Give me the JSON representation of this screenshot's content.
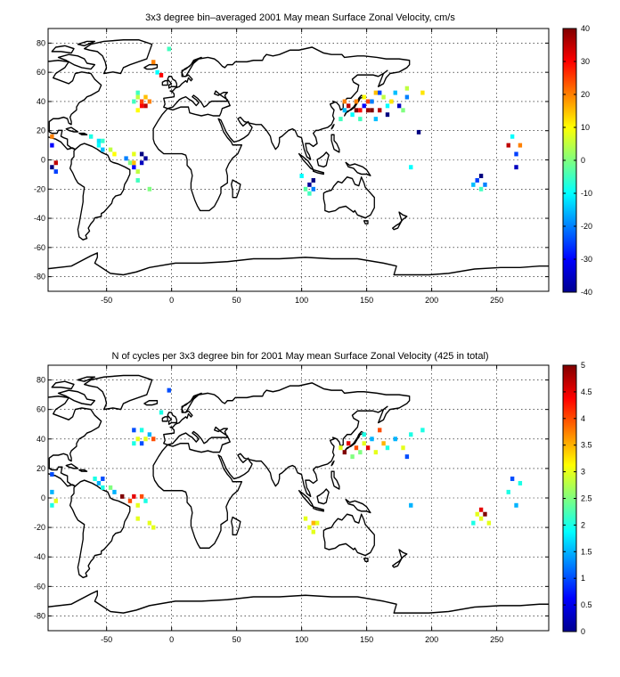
{
  "chart_data": [
    {
      "type": "heatmap",
      "title": "3x3 degree bin–averaged 2001 May mean Surface Zonal Velocity, cm/s",
      "xlim": [
        -95,
        290
      ],
      "ylim": [
        -90,
        90
      ],
      "xticks": [
        -50,
        0,
        50,
        100,
        150,
        200,
        250
      ],
      "yticks": [
        -80,
        -60,
        -40,
        -20,
        0,
        20,
        40,
        60,
        80
      ],
      "grid": true,
      "colorbar": {
        "clim": [
          -40,
          40
        ],
        "ticks": [
          -40,
          -30,
          -20,
          -10,
          0,
          10,
          20,
          30,
          40
        ],
        "colormap": "jet"
      },
      "cells": [
        [
          -92,
          16,
          20
        ],
        [
          -92,
          10,
          -30
        ],
        [
          -92,
          -5,
          -40
        ],
        [
          -89,
          -2,
          35
        ],
        [
          -89,
          -8,
          -25
        ],
        [
          -62,
          16,
          -8
        ],
        [
          -56,
          10,
          -10
        ],
        [
          -56,
          13,
          -12
        ],
        [
          -53,
          13,
          -6
        ],
        [
          -53,
          7,
          -15
        ],
        [
          -47,
          7,
          5
        ],
        [
          -44,
          4,
          10
        ],
        [
          -35,
          1,
          -20
        ],
        [
          -32,
          -2,
          0
        ],
        [
          -29,
          -5,
          -30
        ],
        [
          -29,
          -2,
          15
        ],
        [
          -29,
          4,
          8
        ],
        [
          -26,
          -8,
          5
        ],
        [
          -23,
          -2,
          -35
        ],
        [
          -23,
          4,
          -40
        ],
        [
          -20,
          1,
          -38
        ],
        [
          -26,
          -14,
          -5
        ],
        [
          -17,
          -20,
          0
        ],
        [
          -29,
          40,
          -5
        ],
        [
          -26,
          43,
          5
        ],
        [
          -26,
          34,
          10
        ],
        [
          -23,
          40,
          25
        ],
        [
          -23,
          37,
          30
        ],
        [
          -20,
          37,
          35
        ],
        [
          -20,
          43,
          15
        ],
        [
          -17,
          40,
          20
        ],
        [
          -26,
          46,
          -5
        ],
        [
          -11,
          60,
          -10
        ],
        [
          -8,
          58,
          30
        ],
        [
          -14,
          67,
          20
        ],
        [
          -2,
          76,
          -5
        ],
        [
          100,
          -11,
          -10
        ],
        [
          103,
          -20,
          -3
        ],
        [
          106,
          -17,
          -38
        ],
        [
          106,
          -23,
          -5
        ],
        [
          109,
          -14,
          -40
        ],
        [
          109,
          -20,
          -20
        ],
        [
          130,
          28,
          -5
        ],
        [
          133,
          34,
          -15
        ],
        [
          133,
          40,
          20
        ],
        [
          136,
          37,
          35
        ],
        [
          139,
          31,
          -10
        ],
        [
          142,
          34,
          40
        ],
        [
          142,
          40,
          20
        ],
        [
          145,
          34,
          30
        ],
        [
          145,
          28,
          -5
        ],
        [
          148,
          37,
          -30
        ],
        [
          148,
          43,
          10
        ],
        [
          151,
          34,
          38
        ],
        [
          151,
          40,
          25
        ],
        [
          154,
          34,
          40
        ],
        [
          154,
          40,
          -20
        ],
        [
          157,
          46,
          15
        ],
        [
          157,
          28,
          -15
        ],
        [
          160,
          34,
          36
        ],
        [
          160,
          46,
          -25
        ],
        [
          163,
          43,
          5
        ],
        [
          166,
          37,
          -10
        ],
        [
          166,
          31,
          -40
        ],
        [
          169,
          40,
          12
        ],
        [
          172,
          46,
          -15
        ],
        [
          175,
          37,
          -35
        ],
        [
          178,
          34,
          0
        ],
        [
          181,
          49,
          5
        ],
        [
          181,
          43,
          -20
        ],
        [
          190,
          19,
          -40
        ],
        [
          184,
          -5,
          -10
        ],
        [
          193,
          46,
          12
        ],
        [
          235,
          -14,
          -25
        ],
        [
          238,
          -11,
          -40
        ],
        [
          241,
          -17,
          -20
        ],
        [
          238,
          -20,
          -5
        ],
        [
          232,
          -17,
          -15
        ],
        [
          259,
          10,
          35
        ],
        [
          265,
          4,
          -25
        ],
        [
          265,
          -5,
          -35
        ],
        [
          262,
          16,
          -10
        ],
        [
          268,
          10,
          20
        ]
      ]
    },
    {
      "type": "heatmap",
      "title": "N of cycles per 3x3 degree bin for 2001 May mean Surface Zonal Velocity (425 in total)",
      "xlim": [
        -95,
        290
      ],
      "ylim": [
        -90,
        90
      ],
      "xticks": [
        -50,
        0,
        50,
        100,
        150,
        200,
        250
      ],
      "yticks": [
        -80,
        -60,
        -40,
        -20,
        0,
        20,
        40,
        60,
        80
      ],
      "grid": true,
      "colorbar": {
        "clim": [
          0,
          5
        ],
        "ticks": [
          0,
          0.5,
          1,
          1.5,
          2,
          2.5,
          3,
          3.5,
          4,
          4.5,
          5
        ],
        "colormap": "jet"
      },
      "cells": [
        [
          -92,
          16,
          1
        ],
        [
          -92,
          4,
          1.5
        ],
        [
          -92,
          -5,
          2
        ],
        [
          -89,
          -2,
          3
        ],
        [
          -59,
          13,
          2
        ],
        [
          -56,
          10,
          1.5
        ],
        [
          -53,
          13,
          1
        ],
        [
          -53,
          7,
          2
        ],
        [
          -47,
          7,
          2.5
        ],
        [
          -44,
          4,
          1.5
        ],
        [
          -38,
          1,
          5
        ],
        [
          -32,
          -2,
          4
        ],
        [
          -29,
          1,
          4.5
        ],
        [
          -26,
          -5,
          3
        ],
        [
          -23,
          1,
          4
        ],
        [
          -20,
          -2,
          2
        ],
        [
          -26,
          -14,
          3
        ],
        [
          -17,
          -17,
          3
        ],
        [
          -14,
          -20,
          3
        ],
        [
          -29,
          37,
          2
        ],
        [
          -26,
          40,
          3
        ],
        [
          -23,
          37,
          1
        ],
        [
          -20,
          40,
          3
        ],
        [
          -17,
          43,
          1.5
        ],
        [
          -23,
          46,
          2
        ],
        [
          -29,
          46,
          1
        ],
        [
          -14,
          40,
          4
        ],
        [
          -2,
          73,
          1
        ],
        [
          -8,
          58,
          2
        ],
        [
          103,
          -14,
          3
        ],
        [
          106,
          -20,
          3
        ],
        [
          109,
          -17,
          3.5
        ],
        [
          109,
          -23,
          3
        ],
        [
          112,
          -17,
          3
        ],
        [
          130,
          34,
          3
        ],
        [
          133,
          31,
          5
        ],
        [
          136,
          37,
          4.5
        ],
        [
          139,
          28,
          2.5
        ],
        [
          142,
          34,
          4
        ],
        [
          145,
          31,
          2.5
        ],
        [
          148,
          37,
          3
        ],
        [
          148,
          43,
          2
        ],
        [
          151,
          34,
          4.5
        ],
        [
          154,
          40,
          1.5
        ],
        [
          157,
          31,
          3
        ],
        [
          160,
          46,
          4
        ],
        [
          163,
          37,
          3.5
        ],
        [
          166,
          34,
          2
        ],
        [
          172,
          40,
          1.5
        ],
        [
          178,
          34,
          3
        ],
        [
          181,
          28,
          1
        ],
        [
          184,
          43,
          2
        ],
        [
          184,
          -5,
          1.5
        ],
        [
          193,
          46,
          2
        ],
        [
          235,
          -11,
          3
        ],
        [
          238,
          -8,
          4.5
        ],
        [
          241,
          -11,
          5
        ],
        [
          238,
          -14,
          3
        ],
        [
          244,
          -17,
          3
        ],
        [
          232,
          -17,
          2
        ],
        [
          259,
          4,
          2
        ],
        [
          265,
          -5,
          1.5
        ],
        [
          262,
          13,
          1
        ],
        [
          268,
          10,
          2
        ]
      ]
    }
  ]
}
